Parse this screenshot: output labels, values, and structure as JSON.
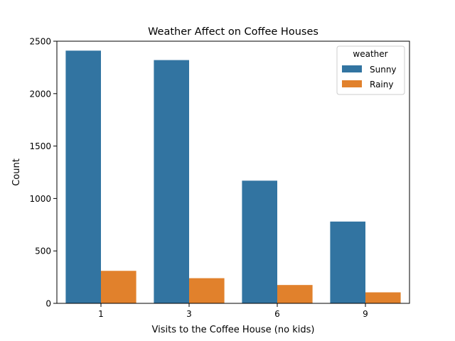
{
  "chart_data": {
    "type": "bar",
    "title": "Weather Affect on Coffee Houses",
    "xlabel": "Visits to the Coffee House (no kids)",
    "ylabel": "Count",
    "categories": [
      "1",
      "3",
      "6",
      "9"
    ],
    "series": [
      {
        "name": "Sunny",
        "values": [
          2410,
          2320,
          1170,
          780
        ],
        "color": "#3274a1"
      },
      {
        "name": "Rainy",
        "values": [
          310,
          240,
          175,
          105
        ],
        "color": "#e1812c"
      }
    ],
    "ylim": [
      0,
      2500
    ],
    "yticks": [
      0,
      500,
      1000,
      1500,
      2000,
      2500
    ],
    "legend": {
      "title": "weather",
      "placement": "top-right"
    },
    "grid": false
  }
}
